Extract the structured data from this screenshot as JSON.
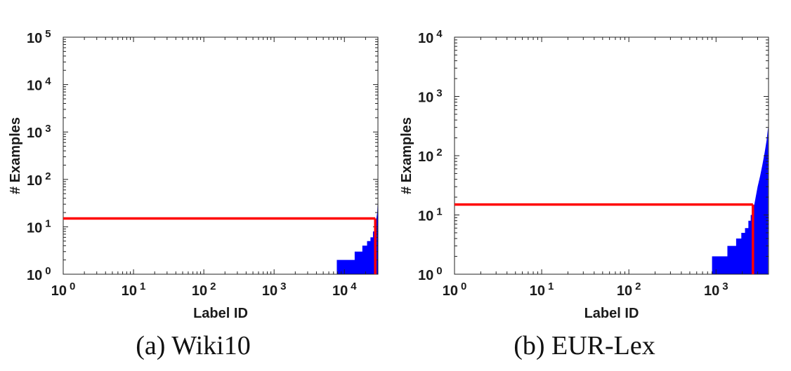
{
  "chart_data": [
    {
      "type": "area",
      "caption": "(a) Wiki10",
      "xlabel": "Label ID",
      "ylabel": "# Examples",
      "xscale": "log",
      "yscale": "log",
      "xlim": [
        1,
        30000
      ],
      "ylim": [
        1,
        100000
      ],
      "xticks": [
        {
          "base": "10",
          "exp": "0"
        },
        {
          "base": "10",
          "exp": "1"
        },
        {
          "base": "10",
          "exp": "2"
        },
        {
          "base": "10",
          "exp": "3"
        },
        {
          "base": "10",
          "exp": "4"
        }
      ],
      "yticks": [
        {
          "base": "10",
          "exp": "0"
        },
        {
          "base": "10",
          "exp": "1"
        },
        {
          "base": "10",
          "exp": "2"
        },
        {
          "base": "10",
          "exp": "3"
        },
        {
          "base": "10",
          "exp": "4"
        },
        {
          "base": "10",
          "exp": "5"
        }
      ],
      "fill_color": "#0000ff",
      "series": [
        {
          "x": [
            7800,
            14000,
            14000,
            18000,
            18000,
            21000,
            21000,
            23500,
            23500,
            25500,
            25500,
            27000,
            27000,
            28500,
            28500,
            29300,
            29800,
            30000
          ],
          "y": [
            2,
            2,
            3,
            3,
            4,
            4,
            5,
            5,
            6,
            6,
            8,
            8,
            10,
            10,
            15,
            20,
            35,
            50
          ]
        }
      ],
      "threshold": {
        "color": "#ff0000",
        "y": 15,
        "x": 27500
      }
    },
    {
      "type": "area",
      "caption": "(b) EUR-Lex",
      "xlabel": "Label ID",
      "ylabel": "# Examples",
      "xscale": "log",
      "yscale": "log",
      "xlim": [
        1,
        4000
      ],
      "ylim": [
        1,
        10000
      ],
      "xticks": [
        {
          "base": "10",
          "exp": "0"
        },
        {
          "base": "10",
          "exp": "1"
        },
        {
          "base": "10",
          "exp": "2"
        },
        {
          "base": "10",
          "exp": "3"
        }
      ],
      "yticks": [
        {
          "base": "10",
          "exp": "0"
        },
        {
          "base": "10",
          "exp": "1"
        },
        {
          "base": "10",
          "exp": "2"
        },
        {
          "base": "10",
          "exp": "3"
        },
        {
          "base": "10",
          "exp": "4"
        }
      ],
      "fill_color": "#0000ff",
      "series": [
        {
          "x": [
            900,
            1350,
            1350,
            1700,
            1700,
            1950,
            1950,
            2150,
            2150,
            2350,
            2350,
            2500,
            2500,
            2650,
            2650,
            2750,
            2850,
            3000,
            3200,
            3400,
            3600,
            3800,
            3950
          ],
          "y": [
            2,
            2,
            3,
            3,
            4,
            4,
            5,
            5,
            6,
            6,
            8,
            8,
            10,
            10,
            12,
            15,
            20,
            30,
            45,
            70,
            110,
            180,
            300
          ]
        }
      ],
      "threshold": {
        "color": "#ff0000",
        "y": 15,
        "x": 2650
      }
    }
  ]
}
